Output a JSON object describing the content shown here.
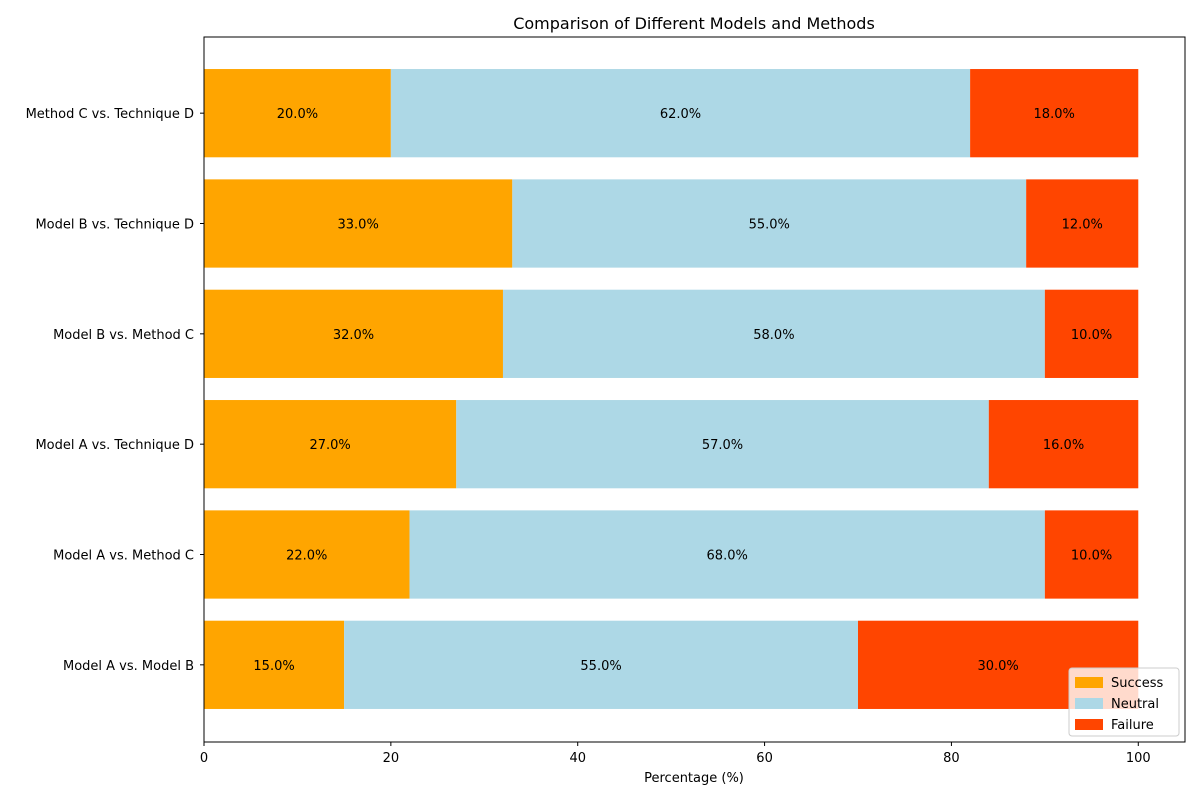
{
  "chart_data": {
    "type": "bar",
    "orientation": "horizontal",
    "stacked": true,
    "title": "Comparison of Different Models and Methods",
    "xlabel": "Percentage (%)",
    "ylabel": "",
    "xlim": [
      0,
      105
    ],
    "xticks": [
      "0",
      "20",
      "40",
      "60",
      "80",
      "100"
    ],
    "categories": [
      "Model A vs. Model B",
      "Model A vs. Method C",
      "Model A vs. Technique D",
      "Model B vs. Method C",
      "Model B vs. Technique D",
      "Method C vs. Technique D"
    ],
    "series": [
      {
        "name": "Success",
        "color": "#FFA500",
        "values": [
          15,
          22,
          27,
          32,
          33,
          20
        ]
      },
      {
        "name": "Neutral",
        "color": "#ADD8E6",
        "values": [
          55,
          68,
          57,
          58,
          55,
          62
        ]
      },
      {
        "name": "Failure",
        "color": "#FF4500",
        "values": [
          30,
          10,
          16,
          10,
          12,
          18
        ]
      }
    ],
    "data_labels": [
      [
        "15.0%",
        "22.0%",
        "27.0%",
        "32.0%",
        "33.0%",
        "20.0%"
      ],
      [
        "55.0%",
        "68.0%",
        "57.0%",
        "58.0%",
        "55.0%",
        "62.0%"
      ],
      [
        "30.0%",
        "10.0%",
        "16.0%",
        "10.0%",
        "12.0%",
        "18.0%"
      ]
    ],
    "legend_position": "bottom-right",
    "grid": false
  }
}
